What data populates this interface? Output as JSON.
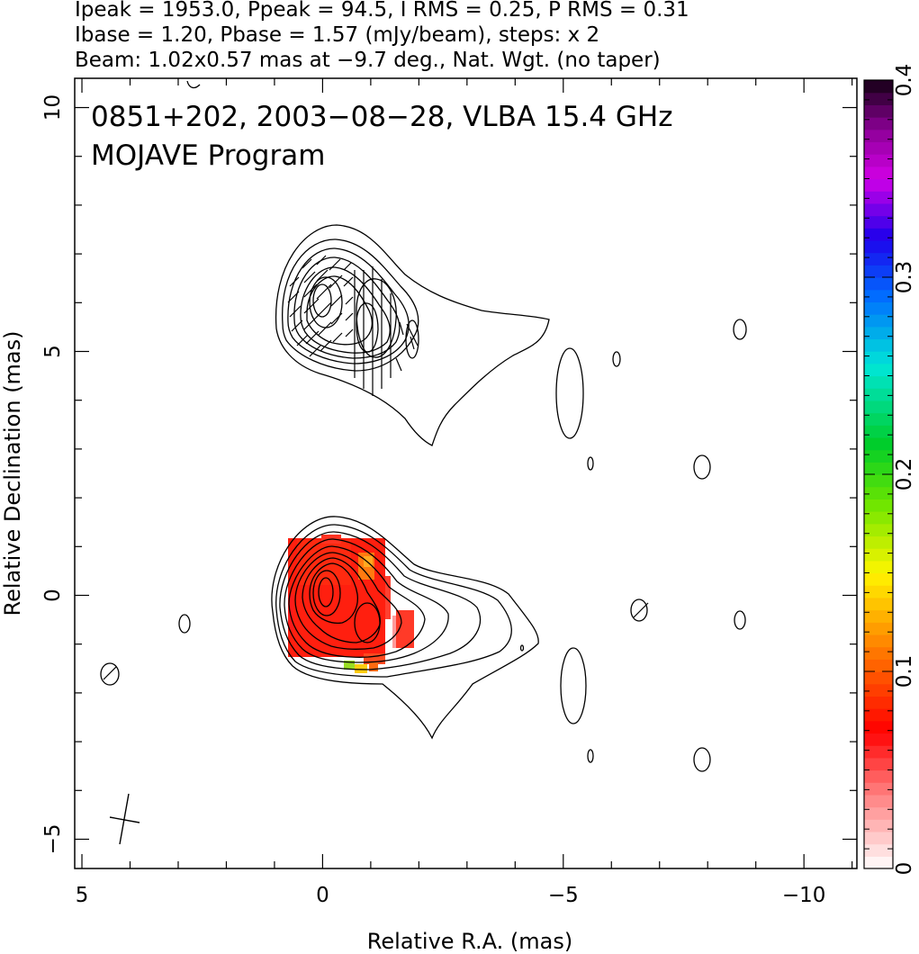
{
  "chart_data": {
    "type": "contour",
    "header_lines": [
      "Ipeak = 1953.0, Ppeak = 94.5, I RMS = 0.25, P RMS = 0.31",
      "Ibase = 1.20, Pbase = 1.57 (mJy/beam), steps: x 2",
      "Beam: 1.02x0.57 mas at −9.7 deg., Nat. Wgt. (no taper)"
    ],
    "title": "0851+202, 2003−08−28, VLBA 15.4 GHz",
    "subtitle": "MOJAVE Program",
    "xlabel": "Relative R.A. (mas)",
    "ylabel": "Relative Declination (mas)",
    "xlim": [
      5.15,
      -11.1
    ],
    "ylim": [
      -5.6,
      10.6
    ],
    "x_ticks": [
      {
        "value": 5,
        "label": "5"
      },
      {
        "value": 0,
        "label": "0"
      },
      {
        "value": -5,
        "label": "−5"
      },
      {
        "value": -10,
        "label": "−10"
      }
    ],
    "y_ticks": [
      {
        "value": -5,
        "label": "−5"
      },
      {
        "value": 0,
        "label": "0"
      },
      {
        "value": 5,
        "label": "5"
      },
      {
        "value": 10,
        "label": "10"
      }
    ],
    "colorbar": {
      "range": [
        0,
        0.4
      ],
      "ticks": [
        {
          "value": 0,
          "label": "0"
        },
        {
          "value": 0.1,
          "label": "0.1"
        },
        {
          "value": 0.2,
          "label": "0.2"
        },
        {
          "value": 0.3,
          "label": "0.3"
        },
        {
          "value": 0.4,
          "label": "0.4"
        }
      ]
    },
    "intensity_peak_mjy_per_beam": 1953.0,
    "polarization_peak_mjy_per_beam": 94.5,
    "intensity_rms": 0.25,
    "polarization_rms": 0.31,
    "intensity_base": 1.2,
    "polarization_base": 1.57,
    "contour_step_factor": 2,
    "beam": {
      "major_mas": 1.02,
      "minor_mas": 0.57,
      "pa_deg": -9.7
    },
    "core_position": [
      0,
      0
    ],
    "total_intensity_core_contour_count": 10,
    "jet_direction": "west"
  }
}
